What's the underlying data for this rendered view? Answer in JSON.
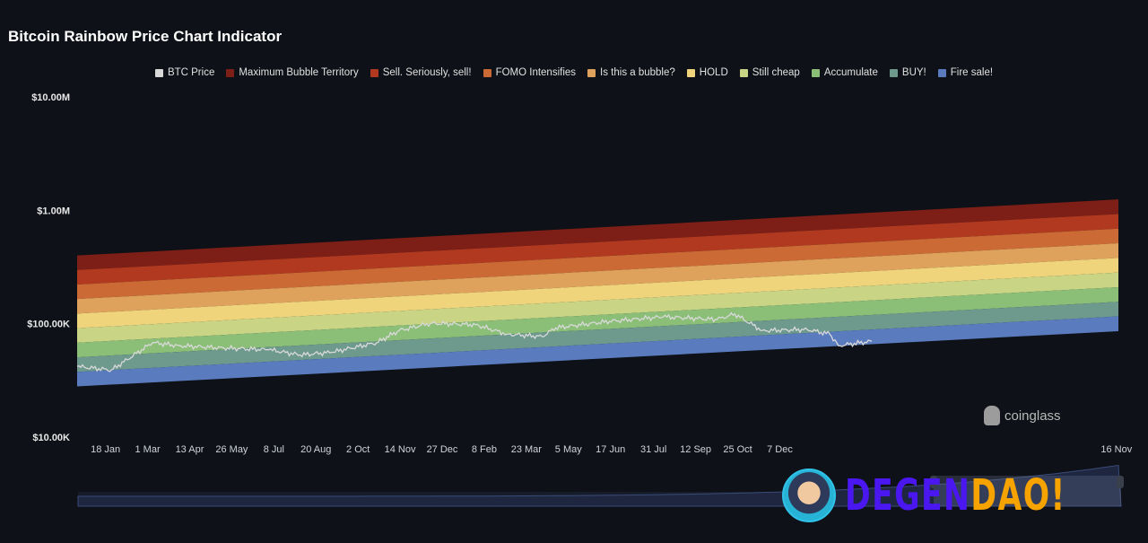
{
  "title": "Bitcoin Rainbow Price Chart Indicator",
  "watermarks": {
    "coinglass": "coinglass",
    "degendao_a": "DEGEN",
    "degendao_b": "DAO!"
  },
  "chart_data": {
    "type": "area",
    "title": "Bitcoin Rainbow Price Chart Indicator",
    "y_scale": "log",
    "ylim": [
      10000,
      10000000
    ],
    "y_ticks": [
      {
        "value": 10000000,
        "label": "$10.00M"
      },
      {
        "value": 1000000,
        "label": "$1.00M"
      },
      {
        "value": 100000,
        "label": "$100.00K"
      },
      {
        "value": 10000,
        "label": "$10.00K"
      }
    ],
    "xlim": [
      "2023-12-20",
      "2026-11-18"
    ],
    "x_ticks": [
      {
        "date": "2024-01-18",
        "label": "18 Jan"
      },
      {
        "date": "2024-03-01",
        "label": "1 Mar"
      },
      {
        "date": "2024-04-13",
        "label": "13 Apr"
      },
      {
        "date": "2024-05-26",
        "label": "26 May"
      },
      {
        "date": "2024-07-08",
        "label": "8 Jul"
      },
      {
        "date": "2024-08-20",
        "label": "20 Aug"
      },
      {
        "date": "2024-10-02",
        "label": "2 Oct"
      },
      {
        "date": "2024-11-14",
        "label": "14 Nov"
      },
      {
        "date": "2024-12-27",
        "label": "27 Dec"
      },
      {
        "date": "2025-02-08",
        "label": "8 Feb"
      },
      {
        "date": "2025-03-23",
        "label": "23 Mar"
      },
      {
        "date": "2025-05-05",
        "label": "5 May"
      },
      {
        "date": "2025-06-17",
        "label": "17 Jun"
      },
      {
        "date": "2025-07-31",
        "label": "31 Jul"
      },
      {
        "date": "2025-09-12",
        "label": "12 Sep"
      },
      {
        "date": "2025-10-25",
        "label": "25 Oct"
      },
      {
        "date": "2025-12-07",
        "label": "7 Dec"
      },
      {
        "date": "2026-11-16",
        "label": "16 Nov"
      }
    ],
    "legend_position": "top-center",
    "legend": [
      {
        "name": "BTC Price",
        "color": "#d9d9d9"
      },
      {
        "name": "Maximum Bubble Territory",
        "color": "#7d1e17"
      },
      {
        "name": "Sell. Seriously, sell!",
        "color": "#b0391f"
      },
      {
        "name": "FOMO Intensifies",
        "color": "#cc6a35"
      },
      {
        "name": "Is this a bubble?",
        "color": "#dfa25c"
      },
      {
        "name": "HOLD",
        "color": "#f0d47c"
      },
      {
        "name": "Still cheap",
        "color": "#c9d484"
      },
      {
        "name": "Accumulate",
        "color": "#8bbf78"
      },
      {
        "name": "BUY!",
        "color": "#6e9a8e"
      },
      {
        "name": "Fire sale!",
        "color": "#5a7cbf"
      }
    ],
    "bands": {
      "boundaries_start": {
        "date": "2023-12-20",
        "values": [
          400000,
          298000,
          222000,
          165200,
          122900,
          91400,
          68000,
          50600,
          37600,
          28000
        ]
      },
      "boundaries_end": {
        "date": "2026-11-18",
        "values": [
          1250000,
          929000,
          690000,
          513000,
          381000,
          283000,
          210000,
          156000,
          116000,
          86000
        ]
      }
    },
    "series": [
      {
        "name": "BTC Price",
        "points": [
          [
            "2023-12-20",
            42000
          ],
          [
            "2024-01-24",
            39000
          ],
          [
            "2024-03-06",
            68000
          ],
          [
            "2024-04-02",
            64000
          ],
          [
            "2024-05-18",
            61000
          ],
          [
            "2024-07-03",
            59000
          ],
          [
            "2024-08-04",
            53000
          ],
          [
            "2024-09-05",
            56000
          ],
          [
            "2024-10-21",
            68000
          ],
          [
            "2024-11-13",
            87000
          ],
          [
            "2024-12-15",
            101000
          ],
          [
            "2025-01-30",
            98000
          ],
          [
            "2025-03-03",
            81000
          ],
          [
            "2025-04-08",
            77000
          ],
          [
            "2025-04-22",
            92000
          ],
          [
            "2025-06-16",
            105000
          ],
          [
            "2025-08-10",
            115000
          ],
          [
            "2025-10-04",
            109000
          ],
          [
            "2025-10-22",
            122000
          ],
          [
            "2025-11-19",
            87000
          ],
          [
            "2026-01-04",
            89000
          ],
          [
            "2026-01-27",
            81000
          ],
          [
            "2026-02-05",
            64000
          ],
          [
            "2026-03-11",
            70000
          ]
        ]
      }
    ]
  }
}
